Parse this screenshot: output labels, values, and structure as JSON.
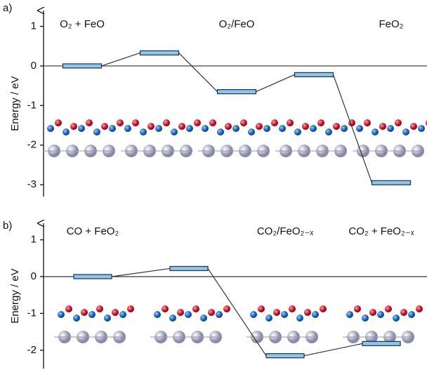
{
  "chart_data": [
    {
      "type": "energy-levels",
      "panel": "a)",
      "ylabel": "Energy / eV",
      "categories": [
        "O₂ + FeO",
        null,
        "O₂/FeO",
        null,
        "FeO₂"
      ],
      "values": [
        0,
        0.33,
        -0.65,
        -0.22,
        -2.95
      ],
      "ylim": [
        -3.3,
        1.4
      ],
      "yticks": [
        -3,
        -2,
        -1,
        0,
        1
      ],
      "color": "#8ec5e8"
    },
    {
      "type": "energy-levels",
      "panel": "b)",
      "ylabel": "Energy / eV",
      "categories": [
        "CO + FeO₂",
        null,
        "CO₂/FeO₂₋ₓ",
        "CO₂ + FeO₂₋ₓ"
      ],
      "values": [
        0,
        0.22,
        -2.15,
        -1.82
      ],
      "ylim": [
        -2.5,
        1.45
      ],
      "yticks": [
        -2,
        -1,
        0,
        1
      ],
      "color": "#8ec5e8"
    }
  ]
}
